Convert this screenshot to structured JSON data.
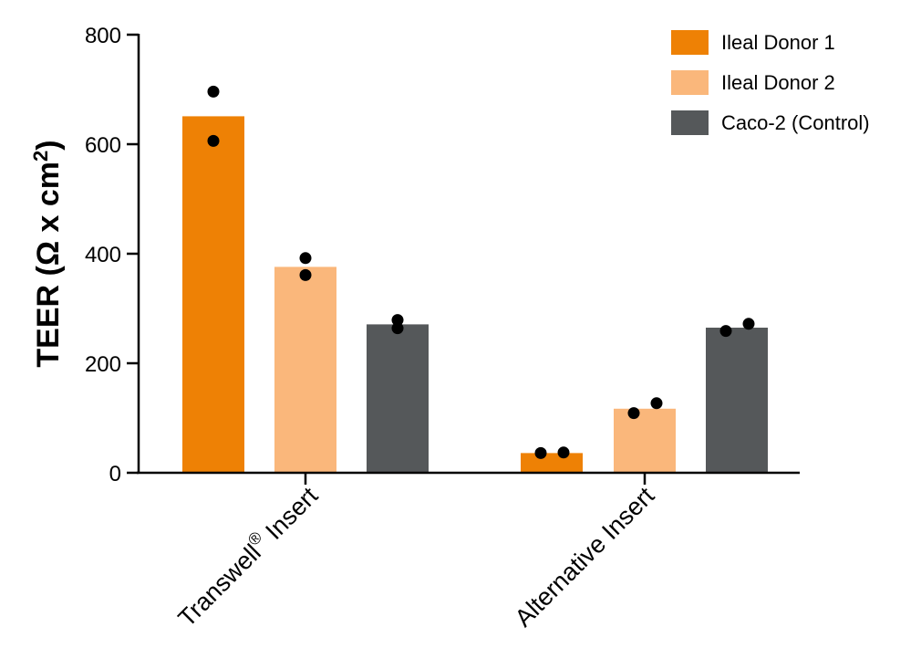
{
  "chart_data": {
    "type": "bar",
    "ylabel_main": "TEER (Ω x cm",
    "ylabel_sup": "2",
    "ylabel_close": ")",
    "ylim": [
      0,
      800
    ],
    "yticks": [
      "0",
      "200",
      "400",
      "600",
      "800"
    ],
    "grid": false,
    "legend_position": "top-right",
    "categories": [
      {
        "main": "Transwell",
        "sup": "®",
        "rest": " Insert"
      },
      {
        "main": "Alternative Insert",
        "sup": "",
        "rest": ""
      }
    ],
    "series": [
      {
        "name": "Ileal Donor 1",
        "color": "#EE8105",
        "values": [
          651,
          36
        ],
        "points": [
          [
            696,
            606
          ],
          [
            36,
            37
          ]
        ]
      },
      {
        "name": "Ileal Donor 2",
        "color": "#FAB77B",
        "values": [
          376,
          117
        ],
        "points": [
          [
            392,
            361
          ],
          [
            109,
            127
          ]
        ]
      },
      {
        "name": "Caco-2 (Control)",
        "color": "#55585A",
        "values": [
          271,
          265
        ],
        "points": [
          [
            264,
            279
          ],
          [
            259,
            272
          ]
        ]
      }
    ]
  }
}
